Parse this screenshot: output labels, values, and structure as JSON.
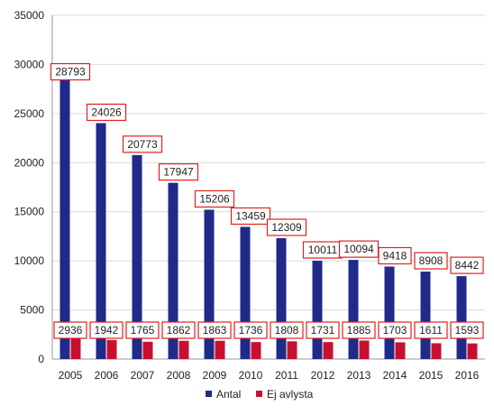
{
  "chart_data": {
    "type": "bar",
    "categories": [
      "2005",
      "2006",
      "2007",
      "2008",
      "2009",
      "2010",
      "2011",
      "2012",
      "2013",
      "2014",
      "2015",
      "2016"
    ],
    "series": [
      {
        "name": "Antal",
        "color": "#1f2a8a",
        "values": [
          28793,
          24026,
          20773,
          17947,
          15206,
          13459,
          12309,
          10011,
          10094,
          9418,
          8908,
          8442
        ]
      },
      {
        "name": "Ej avlysta",
        "color": "#c8102e",
        "values": [
          2936,
          1942,
          1765,
          1862,
          1863,
          1736,
          1808,
          1731,
          1885,
          1703,
          1611,
          1593
        ]
      }
    ],
    "ylim": [
      0,
      35000
    ],
    "yticks": [
      "0",
      "5000",
      "10000",
      "15000",
      "20000",
      "25000",
      "30000",
      "35000"
    ],
    "ytick_values": [
      0,
      5000,
      10000,
      15000,
      20000,
      25000,
      30000,
      35000
    ],
    "grid": true,
    "legend_position": "bottom",
    "data_label_border_color": "#e02020"
  }
}
